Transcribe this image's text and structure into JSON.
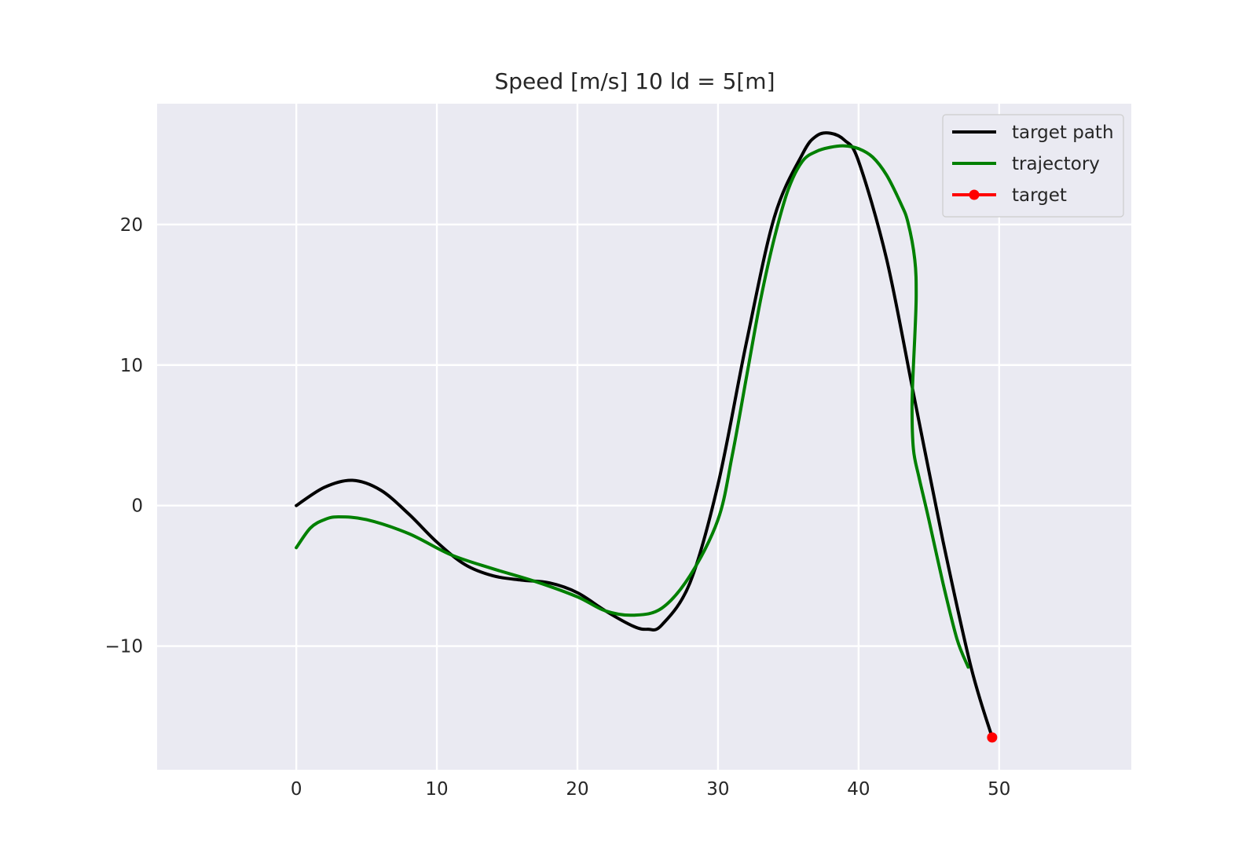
{
  "chart_data": {
    "type": "line",
    "title": "Speed [m/s] 10    ld = 5[m]",
    "xlabel": "",
    "ylabel": "",
    "xlim": [
      -9.9,
      59.4
    ],
    "ylim": [
      -18.8,
      28.6
    ],
    "xticks": [
      0,
      10,
      20,
      30,
      40,
      50
    ],
    "yticks": [
      -10,
      0,
      10,
      20
    ],
    "xtick_labels": [
      "0",
      "10",
      "20",
      "30",
      "40",
      "50"
    ],
    "ytick_labels": [
      "−10",
      "0",
      "10",
      "20"
    ],
    "grid": true,
    "legend_position": "top-right",
    "series": [
      {
        "name": "target path",
        "color": "#000000",
        "x": [
          0,
          2,
          4,
          6,
          8,
          10,
          12,
          14,
          16,
          18,
          20,
          22,
          24,
          25,
          26,
          28,
          30,
          32,
          34,
          36,
          37,
          38,
          39,
          40,
          42,
          44,
          46,
          48,
          49.5
        ],
        "y": [
          0,
          1.3,
          1.8,
          1.1,
          -0.6,
          -2.6,
          -4.2,
          -5.0,
          -5.3,
          -5.5,
          -6.2,
          -7.5,
          -8.6,
          -8.8,
          -8.5,
          -5.5,
          1.5,
          11.5,
          20.5,
          25.0,
          26.3,
          26.5,
          26.0,
          24.5,
          17.5,
          7.5,
          -2.5,
          -11.5,
          -16.5
        ]
      },
      {
        "name": "trajectory",
        "color": "#008000",
        "x": [
          0,
          1,
          2,
          3,
          5,
          8,
          11,
          14,
          17,
          20,
          22,
          24,
          26,
          28,
          30,
          31,
          32,
          33,
          34,
          35,
          36,
          37,
          38,
          39,
          40,
          41,
          42,
          43,
          43.5,
          44,
          44.1,
          44,
          43.9,
          43.8,
          43.9,
          44.3,
          45,
          46,
          47,
          47.8
        ],
        "y": [
          -3.0,
          -1.6,
          -1.0,
          -0.8,
          -1.0,
          -2.0,
          -3.5,
          -4.5,
          -5.4,
          -6.5,
          -7.5,
          -7.8,
          -7.3,
          -5.0,
          -1.0,
          3.5,
          9.0,
          14.5,
          19.0,
          22.5,
          24.5,
          25.2,
          25.5,
          25.6,
          25.4,
          24.8,
          23.5,
          21.5,
          20.2,
          17.5,
          15.0,
          12.0,
          10.0,
          7.0,
          4.0,
          2.0,
          -1.0,
          -5.5,
          -9.5,
          -11.5
        ]
      }
    ],
    "target_point": {
      "name": "target",
      "color": "#ff0000",
      "x": 49.5,
      "y": -16.5
    }
  }
}
